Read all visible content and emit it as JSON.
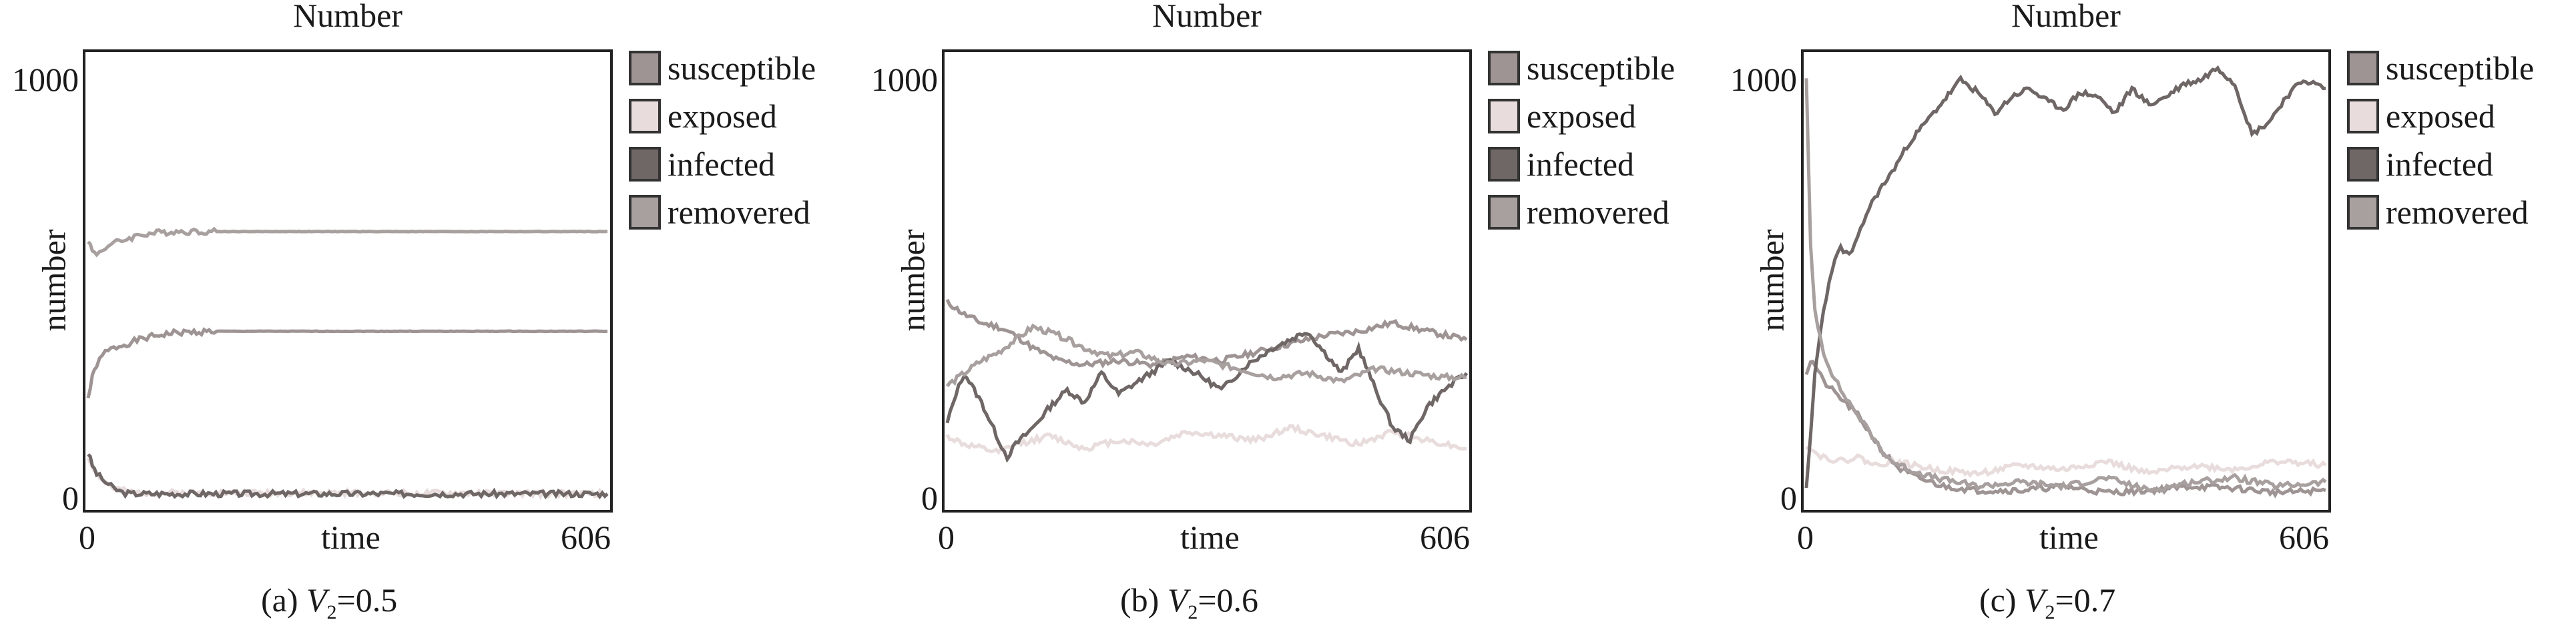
{
  "chart_data": [
    {
      "type": "line",
      "title": "Number",
      "xlabel": "time",
      "ylabel": "number",
      "xlim": [
        0,
        606
      ],
      "ylim": [
        -20,
        1060
      ],
      "xticks": [
        "0",
        "606"
      ],
      "yticks": [
        "0",
        "1000"
      ],
      "caption": {
        "prefix": "(a) ",
        "var": "V",
        "sub": "2",
        "suffix": "=0.5"
      },
      "legend": [
        "susceptible",
        "exposed",
        "infected",
        "removered"
      ],
      "colors": [
        "#9e9494",
        "#e8dcdc",
        "#6f6666",
        "#a89f9f"
      ],
      "series": [
        {
          "name": "susceptible",
          "x": [
            0,
            5,
            10,
            20,
            30,
            45,
            60,
            80,
            100,
            150,
            200,
            300,
            400,
            606
          ],
          "y": [
            240,
            290,
            320,
            350,
            360,
            370,
            380,
            390,
            396,
            400,
            400,
            400,
            400,
            400
          ]
        },
        {
          "name": "exposed",
          "x": [
            0,
            10,
            20,
            30,
            50,
            606
          ],
          "y": [
            100,
            60,
            40,
            25,
            15,
            12
          ]
        },
        {
          "name": "infected",
          "x": [
            0,
            5,
            10,
            20,
            30,
            40,
            50,
            606
          ],
          "y": [
            110,
            80,
            60,
            40,
            25,
            15,
            12,
            12
          ]
        },
        {
          "name": "removered",
          "x": [
            0,
            5,
            10,
            20,
            30,
            45,
            60,
            80,
            100,
            150,
            606
          ],
          "y": [
            620,
            590,
            585,
            600,
            610,
            620,
            630,
            635,
            638,
            638,
            638
          ]
        }
      ]
    },
    {
      "type": "line",
      "title": "Number",
      "xlabel": "time",
      "ylabel": "number",
      "xlim": [
        0,
        606
      ],
      "ylim": [
        -20,
        1060
      ],
      "xticks": [
        "0",
        "606"
      ],
      "yticks": [
        "0",
        "1000"
      ],
      "caption": {
        "prefix": "(b) ",
        "var": "V",
        "sub": "2",
        "suffix": "=0.6"
      },
      "legend": [
        "susceptible",
        "exposed",
        "infected",
        "removered"
      ],
      "colors": [
        "#9e9494",
        "#e8dcdc",
        "#6f6666",
        "#a89f9f"
      ],
      "series": [
        {
          "name": "susceptible",
          "x": [
            0,
            20,
            40,
            60,
            80,
            100,
            130,
            160,
            200,
            240,
            280,
            320,
            360,
            400,
            440,
            480,
            520,
            560,
            606
          ],
          "y": [
            470,
            440,
            420,
            410,
            390,
            360,
            330,
            320,
            330,
            320,
            340,
            330,
            350,
            370,
            390,
            400,
            420,
            400,
            380
          ]
        },
        {
          "name": "exposed",
          "x": [
            0,
            20,
            40,
            60,
            80,
            120,
            160,
            200,
            240,
            280,
            320,
            360,
            400,
            440,
            480,
            520,
            560,
            606
          ],
          "y": [
            150,
            130,
            120,
            110,
            130,
            150,
            120,
            140,
            130,
            160,
            150,
            140,
            170,
            150,
            130,
            160,
            140,
            120
          ]
        },
        {
          "name": "infected",
          "x": [
            0,
            10,
            20,
            40,
            60,
            70,
            80,
            100,
            120,
            140,
            160,
            180,
            200,
            230,
            260,
            290,
            320,
            350,
            380,
            400,
            420,
            440,
            460,
            480,
            500,
            520,
            540,
            560,
            580,
            606
          ],
          "y": [
            180,
            250,
            300,
            230,
            140,
            100,
            130,
            170,
            220,
            260,
            230,
            300,
            250,
            290,
            330,
            300,
            260,
            320,
            360,
            380,
            400,
            350,
            300,
            360,
            260,
            170,
            140,
            220,
            260,
            300
          ]
        },
        {
          "name": "removered",
          "x": [
            0,
            20,
            40,
            60,
            80,
            100,
            130,
            160,
            190,
            220,
            260,
            300,
            340,
            380,
            420,
            460,
            500,
            540,
            580,
            606
          ],
          "y": [
            270,
            300,
            330,
            350,
            380,
            410,
            390,
            360,
            340,
            350,
            320,
            330,
            310,
            290,
            300,
            280,
            310,
            300,
            290,
            290
          ]
        }
      ]
    },
    {
      "type": "line",
      "title": "Number",
      "xlabel": "time",
      "ylabel": "number",
      "xlim": [
        0,
        606
      ],
      "ylim": [
        -20,
        1060
      ],
      "xticks": [
        "0",
        "606"
      ],
      "yticks": [
        "0",
        "1000"
      ],
      "caption": {
        "prefix": "(c) ",
        "var": "V",
        "sub": "2",
        "suffix": "=0.7"
      },
      "legend": [
        "susceptible",
        "exposed",
        "infected",
        "removered"
      ],
      "colors": [
        "#9e9494",
        "#e8dcdc",
        "#6f6666",
        "#a89f9f"
      ],
      "series": [
        {
          "name": "susceptible",
          "x": [
            0,
            5,
            10,
            20,
            30,
            40,
            50,
            60,
            70,
            80,
            90,
            100,
            110,
            130,
            160,
            200,
            250,
            300,
            350,
            400,
            450,
            500,
            550,
            606
          ],
          "y": [
            300,
            330,
            320,
            280,
            260,
            240,
            220,
            200,
            170,
            140,
            110,
            90,
            70,
            50,
            30,
            20,
            20,
            30,
            15,
            20,
            30,
            25,
            15,
            20
          ]
        },
        {
          "name": "exposed",
          "x": [
            0,
            10,
            20,
            40,
            60,
            80,
            100,
            150,
            200,
            250,
            300,
            350,
            400,
            450,
            500,
            550,
            606
          ],
          "y": [
            130,
            110,
            100,
            90,
            100,
            80,
            90,
            70,
            60,
            80,
            70,
            90,
            60,
            80,
            70,
            90,
            80
          ]
        },
        {
          "name": "infected",
          "x": [
            0,
            5,
            10,
            20,
            30,
            40,
            50,
            60,
            70,
            80,
            100,
            120,
            140,
            160,
            180,
            200,
            220,
            240,
            260,
            280,
            300,
            320,
            340,
            360,
            380,
            400,
            420,
            440,
            460,
            480,
            500,
            520,
            540,
            560,
            580,
            606
          ],
          "y": [
            20,
            150,
            300,
            450,
            550,
            600,
            580,
            620,
            680,
            720,
            780,
            850,
            900,
            950,
            1000,
            970,
            920,
            960,
            980,
            950,
            930,
            970,
            960,
            920,
            980,
            940,
            960,
            990,
            1000,
            1030,
            990,
            870,
            900,
            960,
            1000,
            980
          ]
        },
        {
          "name": "removered",
          "x": [
            0,
            5,
            10,
            20,
            30,
            40,
            50,
            60,
            70,
            80,
            90,
            100,
            120,
            150,
            200,
            250,
            300,
            350,
            400,
            450,
            500,
            550,
            606
          ],
          "y": [
            1000,
            600,
            450,
            350,
            300,
            260,
            230,
            200,
            170,
            140,
            110,
            90,
            70,
            50,
            30,
            40,
            30,
            50,
            20,
            40,
            50,
            30,
            40
          ]
        }
      ]
    }
  ]
}
